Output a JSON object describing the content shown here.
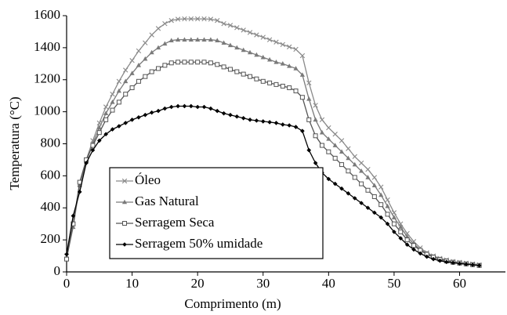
{
  "chart_data": {
    "type": "line",
    "xlabel": "Comprimento (m)",
    "ylabel": "Temperatura (°C)",
    "x": [
      0,
      1,
      2,
      3,
      4,
      5,
      6,
      7,
      8,
      9,
      10,
      11,
      12,
      13,
      14,
      15,
      16,
      17,
      18,
      19,
      20,
      21,
      22,
      23,
      24,
      25,
      26,
      27,
      28,
      29,
      30,
      31,
      32,
      33,
      34,
      35,
      36,
      37,
      38,
      39,
      40,
      41,
      42,
      43,
      44,
      45,
      46,
      47,
      48,
      49,
      50,
      51,
      52,
      53,
      54,
      55,
      56,
      57,
      58,
      59,
      60,
      61,
      62,
      63
    ],
    "series": [
      {
        "name": "Óleo",
        "color": "#8a8a8a",
        "marker": "x",
        "values": [
          100,
          300,
          550,
          700,
          820,
          930,
          1030,
          1110,
          1190,
          1260,
          1320,
          1380,
          1430,
          1480,
          1520,
          1550,
          1570,
          1578,
          1580,
          1580,
          1580,
          1580,
          1578,
          1570,
          1550,
          1540,
          1525,
          1510,
          1495,
          1480,
          1465,
          1450,
          1435,
          1420,
          1405,
          1390,
          1350,
          1180,
          1040,
          950,
          900,
          860,
          820,
          770,
          720,
          680,
          640,
          590,
          530,
          450,
          370,
          300,
          240,
          190,
          150,
          120,
          100,
          85,
          75,
          65,
          60,
          55,
          50,
          45
        ]
      },
      {
        "name": "Gas Natural",
        "color": "#7a7a7a",
        "marker": "triangle",
        "values": [
          90,
          280,
          540,
          690,
          800,
          900,
          990,
          1060,
          1130,
          1190,
          1240,
          1290,
          1330,
          1370,
          1400,
          1425,
          1445,
          1450,
          1450,
          1450,
          1450,
          1450,
          1450,
          1445,
          1430,
          1415,
          1400,
          1385,
          1370,
          1355,
          1340,
          1325,
          1310,
          1300,
          1285,
          1270,
          1230,
          1080,
          950,
          870,
          830,
          790,
          750,
          710,
          670,
          630,
          590,
          540,
          480,
          410,
          340,
          280,
          220,
          175,
          140,
          115,
          95,
          80,
          70,
          62,
          56,
          50,
          46,
          42
        ]
      },
      {
        "name": "Serragem Seca",
        "color": "#555555",
        "marker": "square",
        "values": [
          80,
          300,
          560,
          700,
          790,
          870,
          950,
          1010,
          1060,
          1110,
          1150,
          1190,
          1220,
          1250,
          1270,
          1290,
          1305,
          1310,
          1310,
          1310,
          1310,
          1310,
          1305,
          1295,
          1280,
          1265,
          1250,
          1235,
          1220,
          1205,
          1190,
          1180,
          1170,
          1160,
          1150,
          1130,
          1090,
          950,
          850,
          790,
          750,
          710,
          670,
          630,
          590,
          550,
          510,
          470,
          420,
          360,
          300,
          250,
          200,
          165,
          135,
          110,
          92,
          78,
          68,
          60,
          55,
          50,
          45,
          40
        ]
      },
      {
        "name": "Serragem 50% umidade",
        "color": "#000000",
        "marker": "diamond",
        "values": [
          110,
          350,
          500,
          680,
          760,
          820,
          860,
          890,
          910,
          930,
          950,
          965,
          980,
          995,
          1005,
          1020,
          1030,
          1035,
          1035,
          1035,
          1030,
          1030,
          1020,
          1005,
          990,
          980,
          970,
          960,
          950,
          945,
          940,
          935,
          930,
          920,
          915,
          905,
          880,
          760,
          680,
          620,
          580,
          550,
          520,
          490,
          460,
          430,
          400,
          370,
          340,
          300,
          250,
          210,
          170,
          140,
          115,
          95,
          80,
          70,
          62,
          57,
          52,
          48,
          44,
          40
        ]
      }
    ],
    "xlim": [
      0,
      67
    ],
    "xticks": [
      0,
      10,
      20,
      30,
      40,
      50,
      60
    ],
    "ylim": [
      0,
      1600
    ],
    "yticks": [
      0,
      200,
      400,
      600,
      800,
      1000,
      1200,
      1400,
      1600
    ],
    "grid": false,
    "legend": "lower-left"
  }
}
